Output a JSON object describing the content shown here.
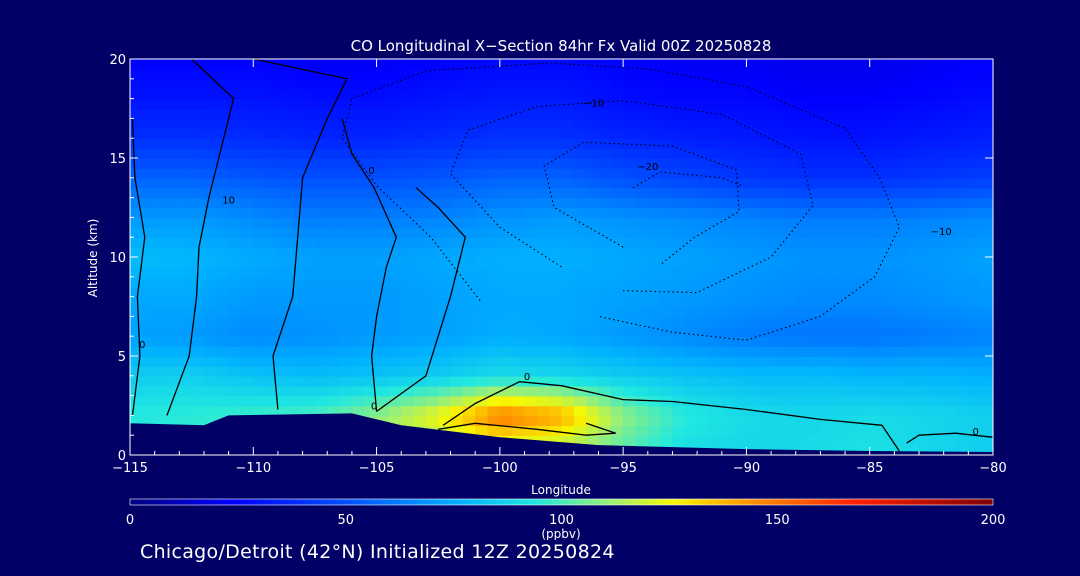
{
  "chart_data": {
    "type": "heatmap",
    "title": "CO Longitudinal X−Section 84hr  Fx Valid 00Z 20250828",
    "xlabel": "Longitude",
    "ylabel": "Altitude (km)",
    "xlim": [
      -115,
      -80
    ],
    "ylim": [
      0,
      20
    ],
    "x_ticks": [
      -115,
      -110,
      -105,
      -100,
      -95,
      -90,
      -85,
      -80
    ],
    "x_tick_labels": [
      "−115",
      "−110",
      "−105",
      "−100",
      "−95",
      "−90",
      "−85",
      "−80"
    ],
    "y_ticks": [
      0,
      5,
      10,
      15,
      20
    ],
    "y_tick_labels": [
      "0",
      "5",
      "10",
      "15",
      "20"
    ],
    "colorbar": {
      "min": 0,
      "max": 200,
      "ticks": [
        0,
        50,
        100,
        150,
        200
      ],
      "tick_labels": [
        "0",
        "50",
        "100",
        "150",
        "200"
      ],
      "unit_label": "(ppbv)"
    },
    "contour_labels": [
      {
        "text": "10",
        "lon": -111.0,
        "alt": 12.7
      },
      {
        "text": "0",
        "lon": -105.2,
        "alt": 14.2
      },
      {
        "text": "0",
        "lon": -114.5,
        "alt": 5.4
      },
      {
        "text": "0",
        "lon": -105.1,
        "alt": 2.3
      },
      {
        "text": "0",
        "lon": -98.9,
        "alt": 3.8
      },
      {
        "text": "0",
        "lon": -80.7,
        "alt": 1.0
      },
      {
        "text": "−10",
        "lon": -96.2,
        "alt": 17.6
      },
      {
        "text": "−20",
        "lon": -94.0,
        "alt": 14.4
      },
      {
        "text": "−10",
        "lon": -82.1,
        "alt": 11.1
      }
    ],
    "terrain": [
      {
        "lon": -115.0,
        "alt": 1.6
      },
      {
        "lon": -112.0,
        "alt": 1.5
      },
      {
        "lon": -111.0,
        "alt": 2.0
      },
      {
        "lon": -106.0,
        "alt": 2.1
      },
      {
        "lon": -104.0,
        "alt": 1.5
      },
      {
        "lon": -100.0,
        "alt": 0.9
      },
      {
        "lon": -96.0,
        "alt": 0.5
      },
      {
        "lon": -90.0,
        "alt": 0.3
      },
      {
        "lon": -85.0,
        "alt": 0.2
      },
      {
        "lon": -80.0,
        "alt": 0.15
      }
    ],
    "co_field_ppbv": {
      "lon": [
        -115,
        -112.5,
        -110,
        -107.5,
        -105,
        -102.5,
        -100,
        -97.5,
        -95,
        -92.5,
        -90,
        -87.5,
        -85,
        -82.5,
        -80
      ],
      "alt": [
        0,
        1,
        2,
        3,
        4,
        5,
        6,
        7,
        8,
        9,
        10,
        11,
        12,
        13,
        14,
        15,
        16,
        17,
        18,
        19,
        20
      ],
      "approximate_levels": [
        {
          "alt": 0,
          "values": [
            90,
            92,
            95,
            100,
            105,
            108,
            112,
            110,
            100,
            90,
            88,
            90,
            92,
            88,
            85
          ]
        },
        {
          "alt": 2,
          "values": [
            95,
            96,
            98,
            100,
            110,
            125,
            150,
            140,
            110,
            95,
            90,
            88,
            90,
            88,
            86
          ]
        },
        {
          "alt": 4,
          "values": [
            85,
            86,
            82,
            80,
            82,
            85,
            90,
            88,
            85,
            82,
            80,
            80,
            78,
            78,
            76
          ]
        },
        {
          "alt": 6,
          "values": [
            72,
            70,
            66,
            68,
            70,
            72,
            75,
            74,
            70,
            66,
            62,
            60,
            60,
            62,
            64
          ]
        },
        {
          "alt": 8,
          "values": [
            74,
            74,
            70,
            70,
            70,
            72,
            74,
            74,
            72,
            70,
            68,
            66,
            66,
            68,
            70
          ]
        },
        {
          "alt": 10,
          "values": [
            80,
            78,
            75,
            72,
            72,
            74,
            76,
            76,
            74,
            72,
            70,
            68,
            68,
            70,
            72
          ]
        },
        {
          "alt": 12,
          "values": [
            70,
            70,
            66,
            62,
            62,
            64,
            68,
            70,
            68,
            66,
            64,
            62,
            62,
            64,
            66
          ]
        },
        {
          "alt": 14,
          "values": [
            55,
            55,
            52,
            50,
            50,
            52,
            55,
            55,
            50,
            46,
            42,
            40,
            40,
            42,
            44
          ]
        },
        {
          "alt": 16,
          "values": [
            40,
            40,
            38,
            36,
            36,
            38,
            40,
            40,
            36,
            34,
            32,
            30,
            30,
            32,
            34
          ]
        },
        {
          "alt": 18,
          "values": [
            30,
            30,
            30,
            28,
            28,
            30,
            32,
            32,
            28,
            26,
            26,
            24,
            24,
            26,
            28
          ]
        },
        {
          "alt": 20,
          "values": [
            24,
            24,
            24,
            22,
            22,
            24,
            26,
            26,
            24,
            22,
            22,
            20,
            20,
            22,
            24
          ]
        }
      ]
    }
  },
  "footer": {
    "caption": "Chicago/Detroit (42°N) Initialized 12Z 20250824"
  },
  "colors": {
    "background": "#000066",
    "text": "#ffffff",
    "terrain": "#000066",
    "contour": "#000000"
  }
}
